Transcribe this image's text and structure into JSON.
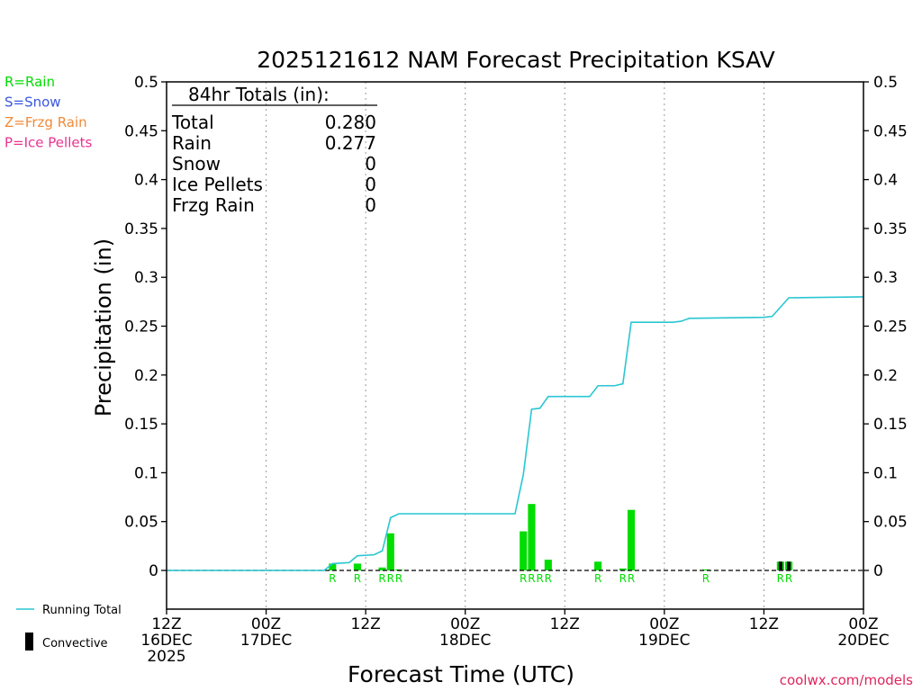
{
  "chart_data": {
    "type": "bar",
    "title": "2025121612 NAM Forecast Precipitation KSAV",
    "xlabel": "Forecast Time (UTC)",
    "ylabel": "Precipitation (in)",
    "ylim": [
      -0.04,
      0.5
    ],
    "yticks": [
      0,
      0.05,
      0.1,
      0.15,
      0.2,
      0.25,
      0.3,
      0.35,
      0.4,
      0.45,
      0.5
    ],
    "ytick_labels": [
      "0",
      "0.05",
      "0.1",
      "0.15",
      "0.2",
      "0.25",
      "0.3",
      "0.35",
      "0.4",
      "0.45",
      "0.5"
    ],
    "xlim_hours": [
      0,
      84
    ],
    "xticks": [
      {
        "hour": 0,
        "lines": [
          "12Z",
          "16DEC",
          "2025"
        ]
      },
      {
        "hour": 12,
        "lines": [
          "00Z",
          "17DEC"
        ]
      },
      {
        "hour": 24,
        "lines": [
          "12Z"
        ]
      },
      {
        "hour": 36,
        "lines": [
          "00Z",
          "18DEC"
        ]
      },
      {
        "hour": 48,
        "lines": [
          "12Z"
        ]
      },
      {
        "hour": 60,
        "lines": [
          "00Z",
          "19DEC"
        ]
      },
      {
        "hour": 72,
        "lines": [
          "12Z"
        ]
      },
      {
        "hour": 84,
        "lines": [
          "00Z",
          "20DEC"
        ]
      }
    ],
    "gridlines_hours": [
      12,
      24,
      36,
      48,
      60,
      72
    ],
    "bars": [
      {
        "hour": 20,
        "value": 0.007,
        "type": "R",
        "convective": false
      },
      {
        "hour": 23,
        "value": 0.007,
        "type": "R",
        "convective": false
      },
      {
        "hour": 26,
        "value": 0.003,
        "type": "R",
        "convective": false
      },
      {
        "hour": 27,
        "value": 0.038,
        "type": "R",
        "convective": false
      },
      {
        "hour": 28,
        "value": 0.001,
        "type": "R",
        "convective": false
      },
      {
        "hour": 43,
        "value": 0.04,
        "type": "R",
        "convective": false
      },
      {
        "hour": 44,
        "value": 0.068,
        "type": "R",
        "convective": false
      },
      {
        "hour": 45,
        "value": 0.0,
        "type": "R",
        "convective": false
      },
      {
        "hour": 46,
        "value": 0.011,
        "type": "R",
        "convective": false
      },
      {
        "hour": 52,
        "value": 0.009,
        "type": "R",
        "convective": false
      },
      {
        "hour": 55,
        "value": 0.002,
        "type": "R",
        "convective": false
      },
      {
        "hour": 56,
        "value": 0.062,
        "type": "R",
        "convective": false
      },
      {
        "hour": 65,
        "value": 0.001,
        "type": "R",
        "convective": false
      },
      {
        "hour": 74,
        "value": 0.009,
        "type": "R",
        "convective": true
      },
      {
        "hour": 75,
        "value": 0.009,
        "type": "R",
        "convective": true
      }
    ],
    "series": [
      {
        "name": "Running Total",
        "points": [
          [
            0,
            0
          ],
          [
            19,
            0
          ],
          [
            20,
            0.007
          ],
          [
            22,
            0.008
          ],
          [
            23,
            0.015
          ],
          [
            25,
            0.016
          ],
          [
            26,
            0.02
          ],
          [
            27,
            0.054
          ],
          [
            28,
            0.058
          ],
          [
            42,
            0.058
          ],
          [
            43,
            0.098
          ],
          [
            44,
            0.165
          ],
          [
            45,
            0.166
          ],
          [
            46,
            0.178
          ],
          [
            51,
            0.178
          ],
          [
            52,
            0.189
          ],
          [
            54,
            0.189
          ],
          [
            55,
            0.191
          ],
          [
            56,
            0.254
          ],
          [
            61,
            0.254
          ],
          [
            62,
            0.255
          ],
          [
            63,
            0.258
          ],
          [
            72,
            0.259
          ],
          [
            73,
            0.26
          ],
          [
            75,
            0.279
          ],
          [
            84,
            0.28
          ]
        ]
      }
    ],
    "legend": [
      {
        "label": "R=Rain",
        "color": "#00dd00"
      },
      {
        "label": "S=Snow",
        "color": "#3a57e0"
      },
      {
        "label": "Z=Frzg Rain",
        "color": "#f08a3a"
      },
      {
        "label": "P=Ice Pellets",
        "color": "#e8338f"
      }
    ],
    "bottom_legend": {
      "running_total": "Running Total",
      "convective": "Convective"
    },
    "totals_box": {
      "heading": "84hr Totals (in):",
      "rows": [
        {
          "label": "Total",
          "value": "0.280"
        },
        {
          "label": "Rain",
          "value": "0.277"
        },
        {
          "label": "Snow",
          "value": "0"
        },
        {
          "label": "Ice Pellets",
          "value": "0"
        },
        {
          "label": "Frzg Rain",
          "value": "0"
        }
      ]
    },
    "credit": "coolwx.com/models"
  },
  "colors": {
    "rain_bar": "#00dd00",
    "running_total": "#29c6d2",
    "convective": "#000000",
    "credit": "#e0245e",
    "grid": "#999999"
  }
}
